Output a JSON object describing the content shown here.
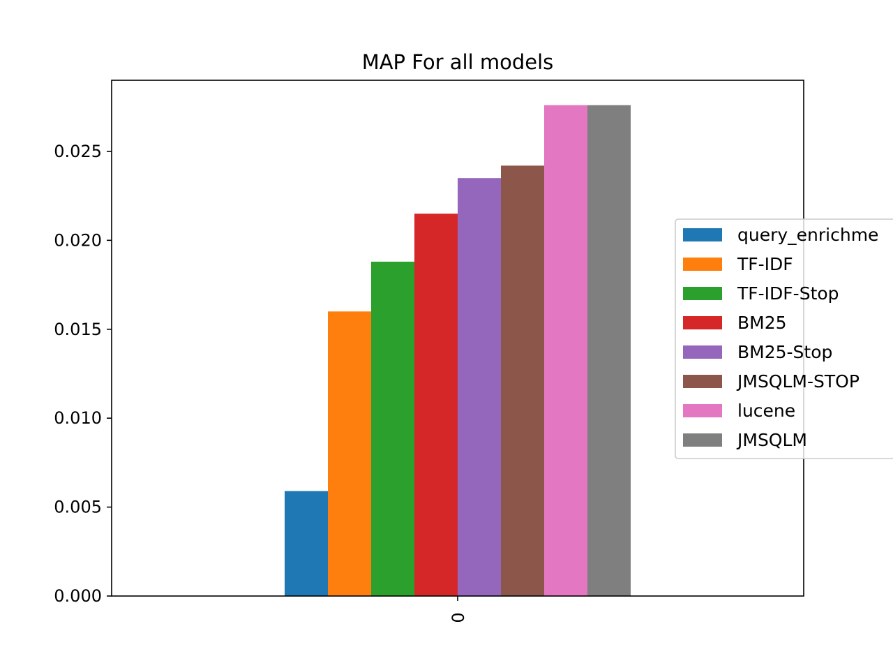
{
  "chart_data": {
    "type": "bar",
    "title": "MAP For all models",
    "xlabel": "",
    "ylabel": "",
    "categories": [
      "0"
    ],
    "ylim": [
      0,
      0.029
    ],
    "yticks": [
      "0.000",
      "0.005",
      "0.010",
      "0.015",
      "0.020",
      "0.025"
    ],
    "grid": false,
    "legend_position": "right",
    "series": [
      {
        "name": "query_enrichme",
        "values": [
          0.0059
        ],
        "color": "#1f77b4"
      },
      {
        "name": "TF-IDF",
        "values": [
          0.016
        ],
        "color": "#ff7f0e"
      },
      {
        "name": "TF-IDF-Stop",
        "values": [
          0.0188
        ],
        "color": "#2ca02c"
      },
      {
        "name": "BM25",
        "values": [
          0.0215
        ],
        "color": "#d62728"
      },
      {
        "name": "BM25-Stop",
        "values": [
          0.0235
        ],
        "color": "#9467bd"
      },
      {
        "name": "JMSQLM-STOP",
        "values": [
          0.0242
        ],
        "color": "#8c564b"
      },
      {
        "name": "lucene",
        "values": [
          0.0276
        ],
        "color": "#e377c2"
      },
      {
        "name": "JMSQLM",
        "values": [
          0.0276
        ],
        "color": "#7f7f7f"
      }
    ]
  }
}
